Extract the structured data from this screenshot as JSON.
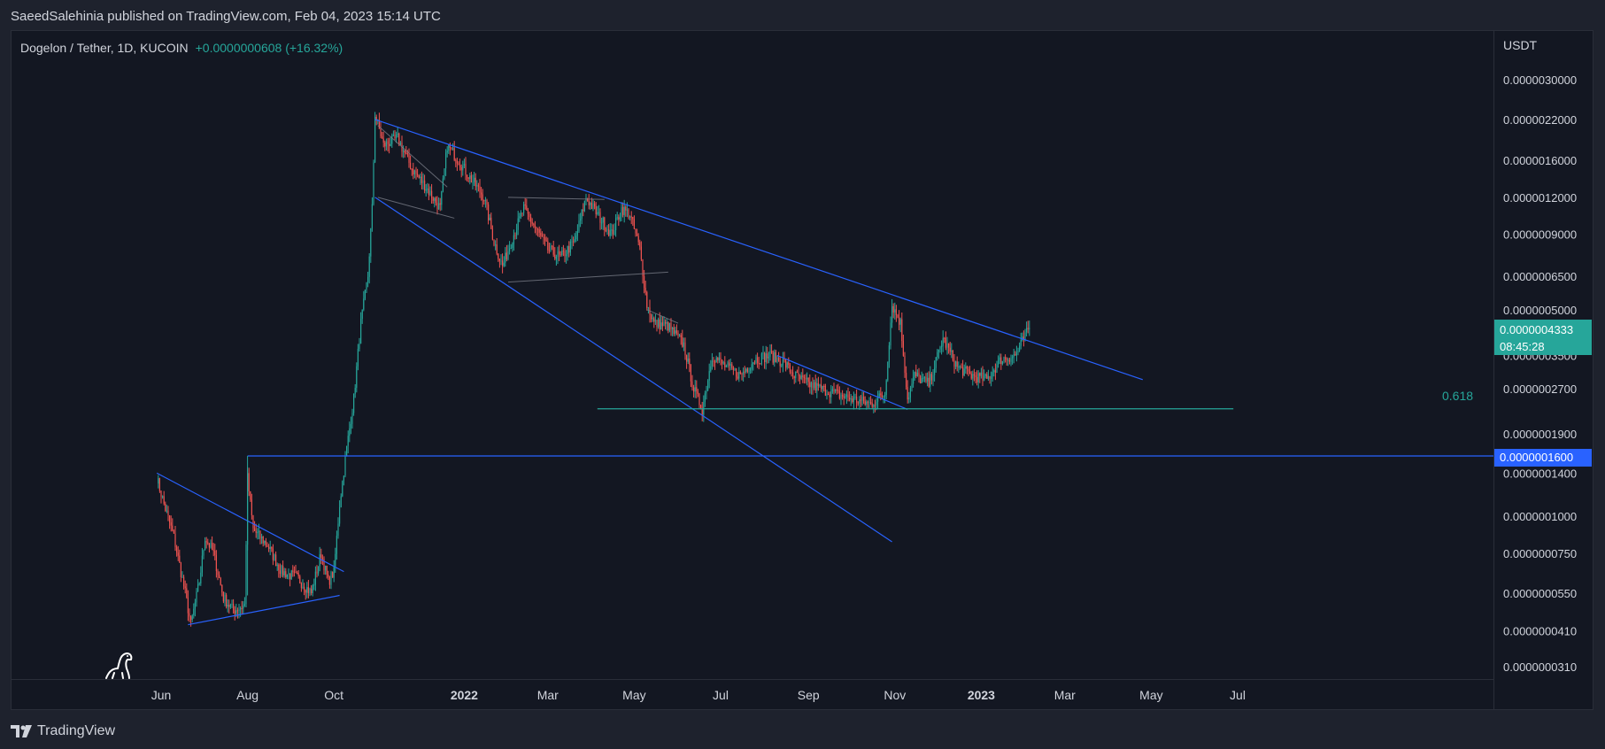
{
  "header": {
    "published_line": "SaeedSalehinia published on TradingView.com, Feb 04, 2023 15:14 UTC"
  },
  "symbol": {
    "title": "Dogelon / Tether, 1D, KUCOIN",
    "change": "+0.0000000608 (+16.32%)"
  },
  "price_axis": {
    "currency": "USDT"
  },
  "last_price": {
    "value": "0.0000004333",
    "countdown": "08:45:28"
  },
  "level_tag": {
    "value": "0.0000001600"
  },
  "fib_label": "0.618",
  "footer": {
    "brand": "TradingView"
  },
  "colors": {
    "background": "#131722",
    "frame": "#1e222d",
    "up": "#26a69a",
    "down": "#ef5350",
    "trendline": "#2962ff",
    "fib": "#26a69a",
    "helper_line": "#787b86"
  },
  "chart_data": {
    "type": "candlestick",
    "scale": "log",
    "ylim": [
      2.9e-08,
      3.4e-06
    ],
    "y_ticks": [
      {
        "value": 3e-06,
        "label": "0.0000030000"
      },
      {
        "value": 2.2e-06,
        "label": "0.0000022000"
      },
      {
        "value": 1.6e-06,
        "label": "0.0000016000"
      },
      {
        "value": 1.2e-06,
        "label": "0.0000012000"
      },
      {
        "value": 9e-07,
        "label": "0.0000009000"
      },
      {
        "value": 6.5e-07,
        "label": "0.0000006500"
      },
      {
        "value": 5e-07,
        "label": "0.0000005000"
      },
      {
        "value": 3.5e-07,
        "label": "0.0000003500"
      },
      {
        "value": 2.7e-07,
        "label": "0.0000002700"
      },
      {
        "value": 1.9e-07,
        "label": "0.0000001900"
      },
      {
        "value": 1.4e-07,
        "label": "0.0000001400"
      },
      {
        "value": 1e-07,
        "label": "0.0000001000"
      },
      {
        "value": 7.5e-08,
        "label": "0.0000000750"
      },
      {
        "value": 5.5e-08,
        "label": "0.0000000550"
      },
      {
        "value": 4.1e-08,
        "label": "0.0000000410"
      },
      {
        "value": 3.1e-08,
        "label": "0.0000000310"
      }
    ],
    "x_ticks": [
      {
        "date": "2021-06-01",
        "label": "Jun",
        "bold": false
      },
      {
        "date": "2021-08-01",
        "label": "Aug",
        "bold": false
      },
      {
        "date": "2021-10-01",
        "label": "Oct",
        "bold": false
      },
      {
        "date": "2022-01-01",
        "label": "2022",
        "bold": true
      },
      {
        "date": "2022-03-01",
        "label": "Mar",
        "bold": false
      },
      {
        "date": "2022-05-01",
        "label": "May",
        "bold": false
      },
      {
        "date": "2022-07-01",
        "label": "Jul",
        "bold": false
      },
      {
        "date": "2022-09-01",
        "label": "Sep",
        "bold": false
      },
      {
        "date": "2022-11-01",
        "label": "Nov",
        "bold": false
      },
      {
        "date": "2023-01-01",
        "label": "2023",
        "bold": true
      },
      {
        "date": "2023-03-01",
        "label": "Mar",
        "bold": false
      },
      {
        "date": "2023-05-01",
        "label": "May",
        "bold": false
      },
      {
        "date": "2023-07-01",
        "label": "Jul",
        "bold": false
      }
    ],
    "price_path": [
      [
        "2021-05-29",
        1.35e-07
      ],
      [
        "2021-06-03",
        1.1e-07
      ],
      [
        "2021-06-10",
        8.5e-08
      ],
      [
        "2021-06-18",
        5.5e-08
      ],
      [
        "2021-06-22",
        4.3e-08
      ],
      [
        "2021-06-28",
        6e-08
      ],
      [
        "2021-07-02",
        8.5e-08
      ],
      [
        "2021-07-08",
        7.5e-08
      ],
      [
        "2021-07-15",
        5.3e-08
      ],
      [
        "2021-07-22",
        4.8e-08
      ],
      [
        "2021-07-30",
        5e-08
      ],
      [
        "2021-08-01",
        1.35e-07
      ],
      [
        "2021-08-05",
        9e-08
      ],
      [
        "2021-08-15",
        8e-08
      ],
      [
        "2021-08-25",
        6.5e-08
      ],
      [
        "2021-09-05",
        6.2e-08
      ],
      [
        "2021-09-15",
        5.5e-08
      ],
      [
        "2021-09-22",
        7.5e-08
      ],
      [
        "2021-09-27",
        6e-08
      ],
      [
        "2021-10-01",
        6.5e-08
      ],
      [
        "2021-10-05",
        1.1e-07
      ],
      [
        "2021-10-10",
        1.7e-07
      ],
      [
        "2021-10-15",
        2.5e-07
      ],
      [
        "2021-10-20",
        4.5e-07
      ],
      [
        "2021-10-25",
        6.5e-07
      ],
      [
        "2021-10-28",
        1.1e-06
      ],
      [
        "2021-10-30",
        2.3e-06
      ],
      [
        "2021-11-05",
        1.8e-06
      ],
      [
        "2021-11-15",
        1.9e-06
      ],
      [
        "2021-11-25",
        1.5e-06
      ],
      [
        "2021-12-05",
        1.3e-06
      ],
      [
        "2021-12-15",
        1.1e-06
      ],
      [
        "2021-12-20",
        1.8e-06
      ],
      [
        "2021-12-28",
        1.6e-06
      ],
      [
        "2022-01-05",
        1.4e-06
      ],
      [
        "2022-01-15",
        1.2e-06
      ],
      [
        "2022-01-22",
        8.5e-07
      ],
      [
        "2022-01-28",
        7e-07
      ],
      [
        "2022-02-05",
        9e-07
      ],
      [
        "2022-02-12",
        1.1e-06
      ],
      [
        "2022-02-20",
        9.5e-07
      ],
      [
        "2022-03-01",
        8e-07
      ],
      [
        "2022-03-10",
        7.5e-07
      ],
      [
        "2022-03-20",
        8.5e-07
      ],
      [
        "2022-03-28",
        1.2e-06
      ],
      [
        "2022-04-05",
        1.05e-06
      ],
      [
        "2022-04-15",
        9e-07
      ],
      [
        "2022-04-22",
        1.1e-06
      ],
      [
        "2022-04-28",
        1.05e-06
      ],
      [
        "2022-05-05",
        8e-07
      ],
      [
        "2022-05-10",
        5.2e-07
      ],
      [
        "2022-05-15",
        4.5e-07
      ],
      [
        "2022-05-25",
        4.4e-07
      ],
      [
        "2022-06-05",
        3.8e-07
      ],
      [
        "2022-06-12",
        2.7e-07
      ],
      [
        "2022-06-18",
        2.3e-07
      ],
      [
        "2022-06-25",
        3.5e-07
      ],
      [
        "2022-07-05",
        3.2e-07
      ],
      [
        "2022-07-15",
        3e-07
      ],
      [
        "2022-07-25",
        3.4e-07
      ],
      [
        "2022-08-05",
        3.5e-07
      ],
      [
        "2022-08-15",
        3.3e-07
      ],
      [
        "2022-08-22",
        3e-07
      ],
      [
        "2022-09-01",
        2.8e-07
      ],
      [
        "2022-09-10",
        2.7e-07
      ],
      [
        "2022-09-20",
        2.6e-07
      ],
      [
        "2022-10-01",
        2.5e-07
      ],
      [
        "2022-10-15",
        2.4e-07
      ],
      [
        "2022-10-25",
        2.6e-07
      ],
      [
        "2022-10-30",
        5.2e-07
      ],
      [
        "2022-11-05",
        4.5e-07
      ],
      [
        "2022-11-10",
        2.5e-07
      ],
      [
        "2022-11-15",
        3e-07
      ],
      [
        "2022-11-25",
        2.8e-07
      ],
      [
        "2022-12-05",
        4e-07
      ],
      [
        "2022-12-15",
        3.2e-07
      ],
      [
        "2022-12-25",
        3e-07
      ],
      [
        "2023-01-05",
        2.9e-07
      ],
      [
        "2023-01-15",
        3.4e-07
      ],
      [
        "2023-01-25",
        3.5e-07
      ],
      [
        "2023-02-04",
        4.333e-07
      ]
    ],
    "trendlines": [
      {
        "name": "major-descending-resistance",
        "color": "#2962ff",
        "points": [
          [
            "2021-10-30",
            2.2e-06
          ],
          [
            "2023-04-25",
            2.9e-07
          ]
        ]
      },
      {
        "name": "descending-channel-support",
        "color": "#2962ff",
        "points": [
          [
            "2021-10-30",
            1.2e-06
          ],
          [
            "2022-10-30",
            8.2e-08
          ]
        ]
      },
      {
        "name": "early-wedge-resistance",
        "color": "#2962ff",
        "points": [
          [
            "2021-05-29",
            1.4e-07
          ],
          [
            "2021-10-08",
            6.5e-08
          ]
        ]
      },
      {
        "name": "early-wedge-support",
        "color": "#2962ff",
        "points": [
          [
            "2021-06-20",
            4.3e-08
          ],
          [
            "2021-10-05",
            5.4e-08
          ]
        ]
      },
      {
        "name": "autumn-descending-line",
        "color": "#2962ff",
        "points": [
          [
            "2022-08-10",
            3.5e-07
          ],
          [
            "2022-11-10",
            2.3e-07
          ]
        ]
      },
      {
        "name": "channel-upper-helper",
        "color": "#787b86",
        "points": [
          [
            "2021-11-01",
            2.1e-06
          ],
          [
            "2021-12-20",
            1.3e-06
          ]
        ]
      },
      {
        "name": "channel-lower-helper",
        "color": "#787b86",
        "points": [
          [
            "2021-11-01",
            1.2e-06
          ],
          [
            "2021-12-25",
            1.02e-06
          ]
        ]
      },
      {
        "name": "range-support-helper",
        "color": "#787b86",
        "points": [
          [
            "2022-02-01",
            6.2e-07
          ],
          [
            "2022-05-25",
            6.7e-07
          ]
        ]
      },
      {
        "name": "range-resistance-helper",
        "color": "#787b86",
        "points": [
          [
            "2022-02-01",
            1.2e-06
          ],
          [
            "2022-04-10",
            1.18e-06
          ]
        ]
      },
      {
        "name": "may-flag-helper",
        "color": "#787b86",
        "points": [
          [
            "2022-05-10",
            5e-07
          ],
          [
            "2022-06-01",
            4.5e-07
          ]
        ]
      }
    ],
    "horizontal_levels": [
      {
        "name": "support-level-0-00000016",
        "value": 1.6e-07,
        "from": "2021-08-01",
        "to": "axis",
        "color": "#2962ff"
      },
      {
        "name": "fib-0-618",
        "value": 2.31e-07,
        "from": "2022-04-05",
        "to": "2023-06-28",
        "color": "#26a69a"
      }
    ],
    "grid": false,
    "legend": "none"
  }
}
